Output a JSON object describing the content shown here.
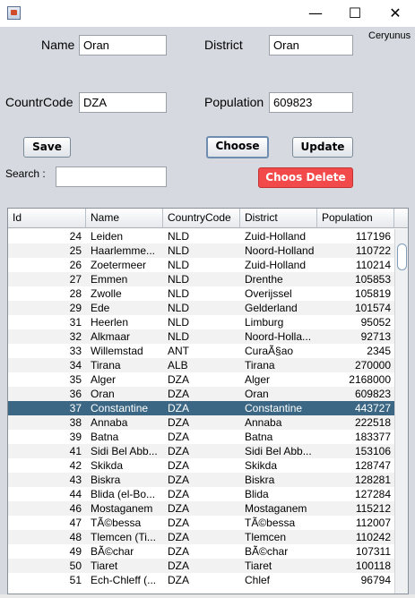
{
  "window": {
    "minimize": "—",
    "maximize": "☐",
    "close": "✕",
    "side_label": "Ceryunus"
  },
  "form": {
    "name_label": "Name",
    "name_value": "Oran",
    "district_label": "District",
    "district_value": "Oran",
    "countrycode_label": "CountrCode",
    "countrycode_value": "DZA",
    "population_label": "Population",
    "population_value": "609823",
    "search_label": "Search :",
    "search_value": ""
  },
  "buttons": {
    "save": "Save",
    "choose": "Choose",
    "update": "Update",
    "delete": "Choos Delete"
  },
  "colors": {
    "selected_row": "#3b6784",
    "delete_button": "#f24a4a"
  },
  "table": {
    "columns": [
      "Id",
      "Name",
      "CountryCode",
      "District",
      "Population"
    ],
    "selected_index": 12,
    "rows": [
      [
        "24",
        "Leiden",
        "NLD",
        "Zuid-Holland",
        "117196"
      ],
      [
        "25",
        "Haarlemme...",
        "NLD",
        "Noord-Holland",
        "110722"
      ],
      [
        "26",
        "Zoetermeer",
        "NLD",
        "Zuid-Holland",
        "110214"
      ],
      [
        "27",
        "Emmen",
        "NLD",
        "Drenthe",
        "105853"
      ],
      [
        "28",
        "Zwolle",
        "NLD",
        "Overijssel",
        "105819"
      ],
      [
        "29",
        "Ede",
        "NLD",
        "Gelderland",
        "101574"
      ],
      [
        "31",
        "Heerlen",
        "NLD",
        "Limburg",
        "95052"
      ],
      [
        "32",
        "Alkmaar",
        "NLD",
        "Noord-Holla...",
        "92713"
      ],
      [
        "33",
        "Willemstad",
        "ANT",
        "CuraÃ§ao",
        "2345"
      ],
      [
        "34",
        "Tirana",
        "ALB",
        "Tirana",
        "270000"
      ],
      [
        "35",
        "Alger",
        "DZA",
        "Alger",
        "2168000"
      ],
      [
        "36",
        "Oran",
        "DZA",
        "Oran",
        "609823"
      ],
      [
        "37",
        "Constantine",
        "DZA",
        "Constantine",
        "443727"
      ],
      [
        "38",
        "Annaba",
        "DZA",
        "Annaba",
        "222518"
      ],
      [
        "39",
        "Batna",
        "DZA",
        "Batna",
        "183377"
      ],
      [
        "41",
        "Sidi Bel Abb...",
        "DZA",
        "Sidi Bel Abb...",
        "153106"
      ],
      [
        "42",
        "Skikda",
        "DZA",
        "Skikda",
        "128747"
      ],
      [
        "43",
        "Biskra",
        "DZA",
        "Biskra",
        "128281"
      ],
      [
        "44",
        "Blida (el-Bo...",
        "DZA",
        "Blida",
        "127284"
      ],
      [
        "46",
        "Mostaganem",
        "DZA",
        "Mostaganem",
        "115212"
      ],
      [
        "47",
        "TÃ©bessa",
        "DZA",
        "TÃ©bessa",
        "112007"
      ],
      [
        "48",
        "Tlemcen (Ti...",
        "DZA",
        "Tlemcen",
        "110242"
      ],
      [
        "49",
        "BÃ©char",
        "DZA",
        "BÃ©char",
        "107311"
      ],
      [
        "50",
        "Tiaret",
        "DZA",
        "Tiaret",
        "100118"
      ],
      [
        "51",
        "Ech-Chleff (...",
        "DZA",
        "Chlef",
        "96794"
      ]
    ]
  }
}
